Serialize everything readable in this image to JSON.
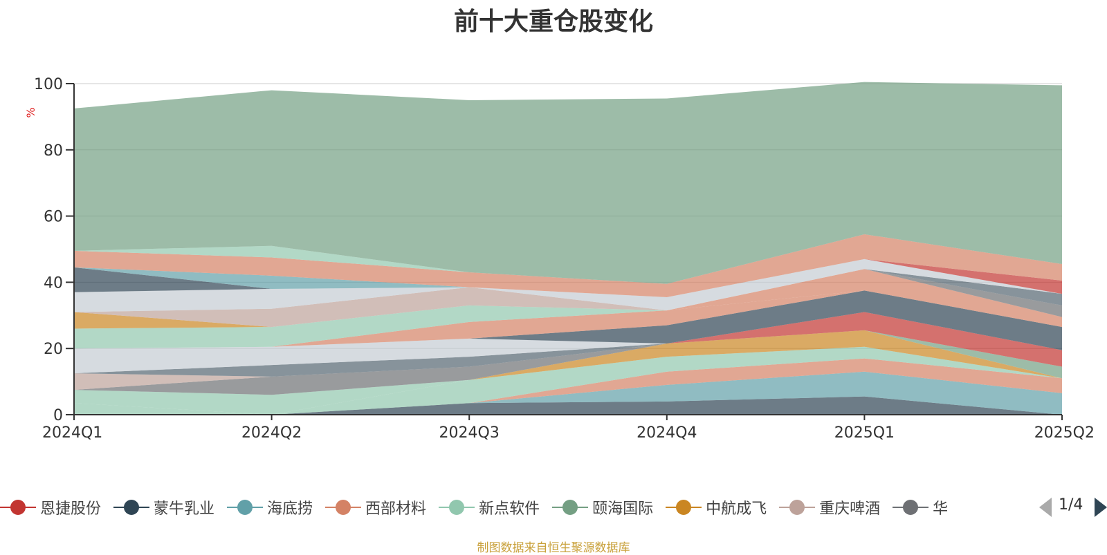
{
  "chart_data": {
    "type": "area",
    "stacked": true,
    "title": "前十大重仓股变化",
    "ylabel": "%",
    "ylim": [
      0,
      100
    ],
    "yticks": [
      0,
      20,
      40,
      60,
      80,
      100
    ],
    "grid": true,
    "categories": [
      "2024Q1",
      "2024Q2",
      "2024Q3",
      "2024Q4",
      "2025Q1",
      "2025Q2"
    ],
    "series": [
      {
        "name": "",
        "color": "#2f4554",
        "values": [
          0,
          0,
          3.5,
          4,
          5.5,
          0
        ]
      },
      {
        "name": "海底捞",
        "color": "#61a0a8",
        "values": [
          0,
          0,
          0,
          5,
          7.5,
          6.5
        ]
      },
      {
        "name": "西部材料",
        "color": "#d48265",
        "values": [
          0,
          0,
          0,
          4,
          4,
          4.5
        ]
      },
      {
        "name": "新点软件",
        "color": "#91c7ae",
        "values": [
          3.5,
          0,
          7,
          4.5,
          3.5,
          0
        ]
      },
      {
        "name": "中航成飞",
        "color": "#ca8622",
        "values": [
          0,
          0,
          0,
          4,
          5,
          0
        ]
      },
      {
        "name": "颐海国际",
        "color": "#749f83",
        "values": [
          0,
          0,
          0,
          0,
          0,
          3.5
        ]
      },
      {
        "name": "恩捷股份",
        "color": "#c23531",
        "values": [
          0,
          0,
          0,
          0,
          5.5,
          5
        ]
      },
      {
        "name": "新点软件",
        "color": "#91c7ae",
        "values": [
          4,
          6,
          0,
          0,
          0,
          0
        ]
      },
      {
        "name": "华",
        "color": "#6e7074",
        "values": [
          0,
          5.5,
          4,
          0,
          0,
          0
        ]
      },
      {
        "name": "重庆啤酒",
        "color": "#bda29a",
        "values": [
          5,
          0,
          0,
          0,
          0,
          0
        ]
      },
      {
        "name": "",
        "color": "#546570",
        "values": [
          0,
          3.5,
          3,
          0,
          0,
          0
        ]
      },
      {
        "name": "",
        "color": "#c4ccd3",
        "values": [
          7.5,
          5.5,
          5.5,
          0,
          0,
          0
        ]
      },
      {
        "name": "蒙牛乳业",
        "color": "#2f4554",
        "values": [
          0,
          0,
          0,
          5.5,
          6.5,
          7
        ]
      },
      {
        "name": "西部材料",
        "color": "#d48265",
        "values": [
          0,
          0,
          5,
          4.5,
          0,
          0
        ]
      },
      {
        "name": "新点软件",
        "color": "#91c7ae",
        "values": [
          6,
          6,
          5,
          0,
          0,
          0
        ]
      },
      {
        "name": "重庆啤酒",
        "color": "#bda29a",
        "values": [
          0,
          0,
          0,
          0,
          0,
          0
        ]
      },
      {
        "name": "中航成飞",
        "color": "#ca8622",
        "values": [
          5,
          0,
          0,
          0,
          0,
          0
        ]
      },
      {
        "name": "西部材料",
        "color": "#d48265",
        "values": [
          0,
          0,
          0,
          0,
          6.5,
          3
        ]
      },
      {
        "name": "重庆啤酒",
        "color": "#bda29a",
        "values": [
          0,
          5.5,
          5.5,
          0,
          0,
          0
        ]
      },
      {
        "name": "",
        "color": "#6e7074",
        "values": [
          0,
          0,
          0,
          0,
          0,
          3.5
        ]
      },
      {
        "name": "",
        "color": "#546570",
        "values": [
          0,
          0,
          0,
          0,
          0,
          3.5
        ]
      },
      {
        "name": "",
        "color": "#c4ccd3",
        "values": [
          6,
          6,
          0,
          4,
          3,
          0
        ]
      },
      {
        "name": "",
        "color": "#2f4554",
        "values": [
          7.5,
          0,
          0,
          0,
          0,
          0
        ]
      },
      {
        "name": "海底捞",
        "color": "#61a0a8",
        "values": [
          0,
          4,
          0,
          0,
          0,
          0
        ]
      },
      {
        "name": "恩捷股份",
        "color": "#c23531",
        "values": [
          0,
          0,
          0,
          0,
          0,
          4
        ]
      },
      {
        "name": "西部材料",
        "color": "#d48265",
        "values": [
          5,
          5.5,
          4.5,
          4,
          7.5,
          5
        ]
      },
      {
        "name": "新点软件",
        "color": "#91c7ae",
        "values": [
          0,
          3.5,
          0,
          0,
          0,
          0
        ]
      },
      {
        "name": "颐海国际",
        "color": "#749f83",
        "values": [
          43,
          47,
          52,
          56,
          46,
          54
        ]
      }
    ]
  },
  "legend": {
    "items": [
      {
        "label": "恩捷股份",
        "color": "#c23531"
      },
      {
        "label": "蒙牛乳业",
        "color": "#2f4554"
      },
      {
        "label": "海底捞",
        "color": "#61a0a8"
      },
      {
        "label": "西部材料",
        "color": "#d48265"
      },
      {
        "label": "新点软件",
        "color": "#91c7ae"
      },
      {
        "label": "颐海国际",
        "color": "#749f83"
      },
      {
        "label": "中航成飞",
        "color": "#ca8622"
      },
      {
        "label": "重庆啤酒",
        "color": "#bda29a"
      },
      {
        "label": "华",
        "color": "#6e7074"
      }
    ],
    "pager": "1/4"
  },
  "source_note": "制图数据来自恒生聚源数据库"
}
